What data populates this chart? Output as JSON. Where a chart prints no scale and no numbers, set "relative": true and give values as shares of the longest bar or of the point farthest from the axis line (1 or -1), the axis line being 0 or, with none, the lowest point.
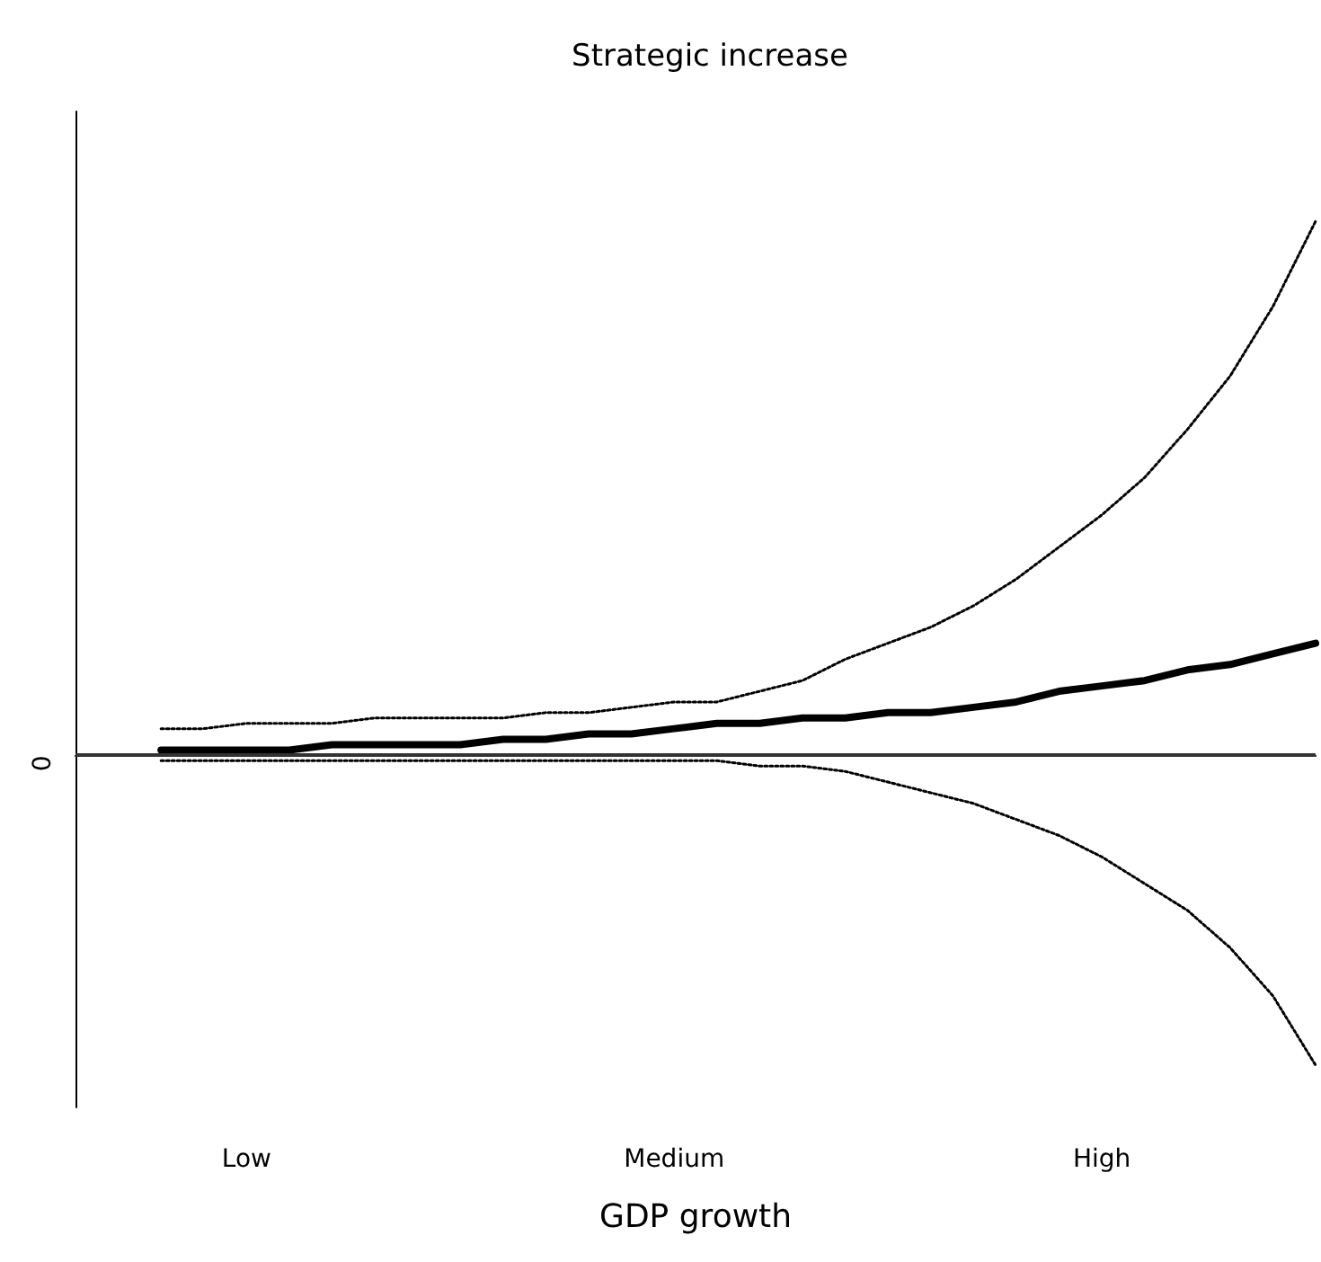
{
  "chart_data": {
    "type": "line",
    "title": "Strategic increase",
    "xlabel": "GDP growth",
    "relative": true,
    "categories": [
      null,
      null,
      null,
      null,
      "Low",
      null,
      null,
      null,
      null,
      null,
      null,
      null,
      null,
      null,
      "Medium",
      null,
      null,
      null,
      null,
      null,
      null,
      null,
      null,
      null,
      "High",
      null,
      null,
      null,
      null,
      null
    ],
    "series": [
      {
        "color": "#000000",
        "line_style": "dotted",
        "values": [
          null,
          null,
          0.05,
          0.05,
          0.06,
          0.06,
          0.06,
          0.07,
          0.07,
          0.07,
          0.07,
          0.08,
          0.08,
          0.09,
          0.1,
          0.1,
          0.12,
          0.14,
          0.18,
          0.21,
          0.24,
          0.28,
          0.33,
          0.39,
          0.45,
          0.52,
          0.61,
          0.71,
          0.84,
          1
        ]
      },
      {
        "color": "#000000",
        "line_style": "solid",
        "values": [
          null,
          null,
          0.01,
          0.01,
          0.01,
          0.01,
          0.02,
          0.02,
          0.02,
          0.02,
          0.03,
          0.03,
          0.04,
          0.04,
          0.05,
          0.06,
          0.06,
          0.07,
          0.07,
          0.08,
          0.08,
          0.09,
          0.1,
          0.12,
          0.13,
          0.14,
          0.16,
          0.17,
          0.19,
          0.21
        ]
      },
      {
        "color": "#000000",
        "line_style": "dotted",
        "values": [
          null,
          null,
          -0.01,
          -0.01,
          -0.01,
          -0.01,
          -0.01,
          -0.01,
          -0.01,
          -0.01,
          -0.01,
          -0.01,
          -0.01,
          -0.01,
          -0.01,
          -0.01,
          -0.02,
          -0.02,
          -0.03,
          -0.05,
          -0.07,
          -0.09,
          -0.12,
          -0.15,
          -0.19,
          -0.24,
          -0.29,
          -0.36,
          -0.45,
          -0.58
        ]
      }
    ],
    "ref_lines": [
      {
        "axis": "y",
        "value": 0,
        "label": "0",
        "color": "#333333",
        "line_style": "solid"
      }
    ],
    "marker": "none"
  }
}
